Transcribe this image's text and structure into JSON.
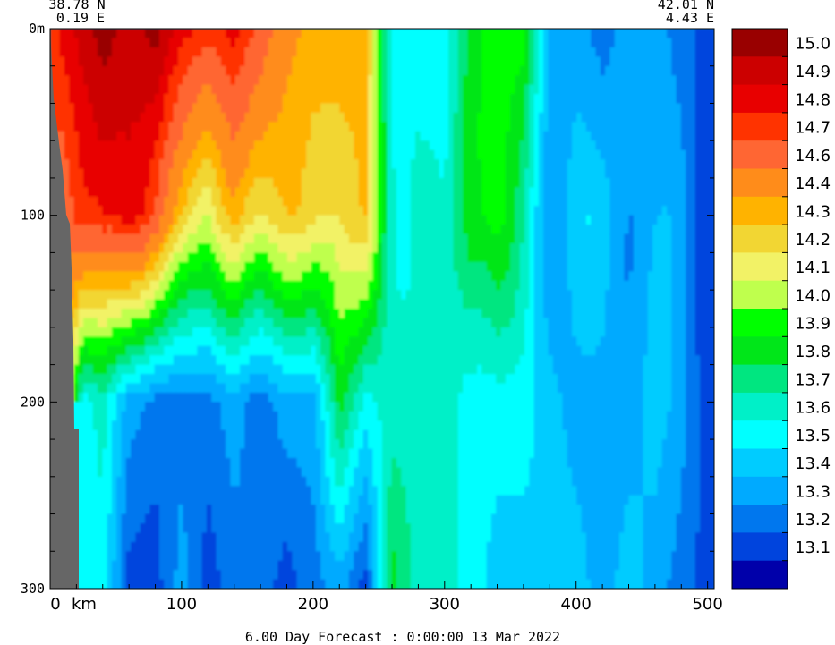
{
  "chart_data": {
    "type": "heatmap",
    "title": "6.00 Day Forecast :  0:00:00  13 Mar 2022",
    "start_point": {
      "lat": "38.78 N",
      "lon": "0.19 E"
    },
    "end_point": {
      "lat": "42.01 N",
      "lon": "4.43 E"
    },
    "x_axis": {
      "unit_label": "km",
      "range": [
        0,
        505
      ],
      "ticks": [
        0,
        100,
        200,
        300,
        400,
        500
      ],
      "tick_labels": [
        "0",
        "100",
        "200",
        "300",
        "400",
        "500"
      ]
    },
    "y_axis": {
      "surface_label": "0m",
      "range": [
        0,
        300
      ],
      "ticks": [
        0,
        100,
        200,
        300
      ],
      "tick_labels": [
        "0m",
        "100",
        "200",
        "300"
      ],
      "inverted": true
    },
    "colorbar": {
      "labels": [
        "15.0",
        "14.9",
        "14.8",
        "14.7",
        "14.6",
        "14.4",
        "14.3",
        "14.2",
        "14.1",
        "14.0",
        "13.9",
        "13.8",
        "13.7",
        "13.6",
        "13.5",
        "13.4",
        "13.3",
        "13.2",
        "13.1"
      ],
      "colors": [
        "#990000",
        "#cc0000",
        "#e80000",
        "#ff3300",
        "#ff6633",
        "#ff8c1a",
        "#ffb300",
        "#f2d633",
        "#f2f266",
        "#bfff4d",
        "#00ff00",
        "#00e619",
        "#00e680",
        "#00f0c8",
        "#00ffff",
        "#00ccff",
        "#00aaff",
        "#0077ee",
        "#0044dd",
        "#0000aa"
      ]
    },
    "land_color": "#666666",
    "section_profile": [
      {
        "x": 0,
        "t": [
          null,
          null,
          null,
          null
        ]
      },
      {
        "x": 10,
        "t": [
          14.8,
          14.5,
          null,
          null
        ]
      },
      {
        "x": 25,
        "t": [
          14.9,
          14.7,
          13.5,
          13.5
        ]
      },
      {
        "x": 40,
        "t": [
          15.0,
          14.8,
          13.6,
          13.5
        ]
      },
      {
        "x": 60,
        "t": [
          14.9,
          14.8,
          13.3,
          13.1
        ]
      },
      {
        "x": 80,
        "t": [
          15.0,
          14.6,
          13.2,
          13.1
        ]
      },
      {
        "x": 100,
        "t": [
          14.8,
          14.3,
          13.2,
          13.3
        ]
      },
      {
        "x": 120,
        "t": [
          14.7,
          14.0,
          13.2,
          13.1
        ]
      },
      {
        "x": 140,
        "t": [
          14.8,
          14.3,
          13.3,
          13.2
        ]
      },
      {
        "x": 160,
        "t": [
          14.6,
          14.2,
          13.2,
          13.2
        ]
      },
      {
        "x": 180,
        "t": [
          14.4,
          14.2,
          13.3,
          13.1
        ]
      },
      {
        "x": 200,
        "t": [
          14.3,
          14.2,
          13.3,
          13.2
        ]
      },
      {
        "x": 220,
        "t": [
          14.3,
          14.2,
          13.8,
          13.3
        ]
      },
      {
        "x": 240,
        "t": [
          14.3,
          14.2,
          13.5,
          13.1
        ]
      },
      {
        "x": 260,
        "t": [
          13.5,
          13.6,
          13.6,
          13.8
        ]
      },
      {
        "x": 280,
        "t": [
          13.5,
          13.6,
          13.6,
          13.6
        ]
      },
      {
        "x": 300,
        "t": [
          13.5,
          13.5,
          13.6,
          13.6
        ]
      },
      {
        "x": 320,
        "t": [
          13.8,
          13.9,
          13.5,
          13.5
        ]
      },
      {
        "x": 340,
        "t": [
          13.9,
          13.9,
          13.5,
          13.4
        ]
      },
      {
        "x": 360,
        "t": [
          13.9,
          13.6,
          13.5,
          13.4
        ]
      },
      {
        "x": 380,
        "t": [
          13.3,
          13.3,
          13.4,
          13.4
        ]
      },
      {
        "x": 400,
        "t": [
          13.3,
          13.4,
          13.3,
          13.4
        ]
      },
      {
        "x": 420,
        "t": [
          13.2,
          13.4,
          13.3,
          13.3
        ]
      },
      {
        "x": 440,
        "t": [
          13.3,
          13.3,
          13.3,
          13.4
        ]
      },
      {
        "x": 460,
        "t": [
          13.3,
          13.3,
          13.4,
          13.3
        ]
      },
      {
        "x": 480,
        "t": [
          13.2,
          13.3,
          13.3,
          13.2
        ]
      },
      {
        "x": 500,
        "t": [
          13.1,
          13.1,
          13.1,
          13.1
        ]
      }
    ],
    "profile_depths": [
      0,
      100,
      200,
      300
    ]
  }
}
